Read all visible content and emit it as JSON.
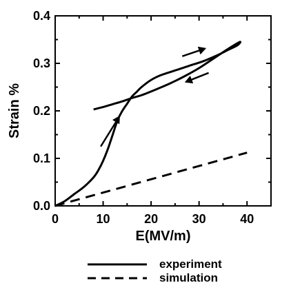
{
  "chart_data": {
    "type": "line",
    "xlabel": "E(MV/m)",
    "ylabel": "Strain %",
    "xlim": [
      0,
      45
    ],
    "ylim": [
      0,
      0.4
    ],
    "x_ticks": [
      "0",
      "10",
      "20",
      "30",
      "40"
    ],
    "y_ticks": [
      "0.0",
      "0.1",
      "0.2",
      "0.3",
      "0.4"
    ],
    "x_tick_values": [
      0,
      10,
      20,
      30,
      40
    ],
    "y_tick_values": [
      0.0,
      0.1,
      0.2,
      0.3,
      0.4
    ],
    "grid": false,
    "legend_position": "bottom-center",
    "series": [
      {
        "name": "experiment",
        "style": "solid",
        "color": "#000000",
        "x": [
          0,
          2,
          4,
          6,
          8,
          9,
          10,
          11,
          12,
          13,
          14,
          15,
          16,
          17,
          18,
          20,
          22,
          25,
          28,
          31,
          34,
          36,
          38,
          38.5,
          36,
          33,
          30,
          27,
          24,
          21,
          18,
          16,
          14,
          12,
          10,
          8
        ],
        "y": [
          0.0,
          0.01,
          0.025,
          0.04,
          0.06,
          0.075,
          0.095,
          0.12,
          0.15,
          0.18,
          0.2,
          0.215,
          0.23,
          0.24,
          0.25,
          0.265,
          0.275,
          0.285,
          0.295,
          0.305,
          0.318,
          0.328,
          0.338,
          0.345,
          0.33,
          0.31,
          0.29,
          0.273,
          0.258,
          0.245,
          0.233,
          0.227,
          0.22,
          0.214,
          0.208,
          0.203
        ]
      },
      {
        "name": "simulation",
        "style": "dashed",
        "color": "#000000",
        "x": [
          0,
          40
        ],
        "y": [
          0.0,
          0.112
        ]
      }
    ],
    "annotations": [
      {
        "type": "arrow",
        "from": [
          9.5,
          0.125
        ],
        "to": [
          13.5,
          0.19
        ]
      },
      {
        "type": "arrow",
        "from": [
          26.5,
          0.315
        ],
        "to": [
          31.5,
          0.332
        ]
      },
      {
        "type": "arrow",
        "from": [
          32,
          0.28
        ],
        "to": [
          27,
          0.26
        ]
      }
    ]
  }
}
